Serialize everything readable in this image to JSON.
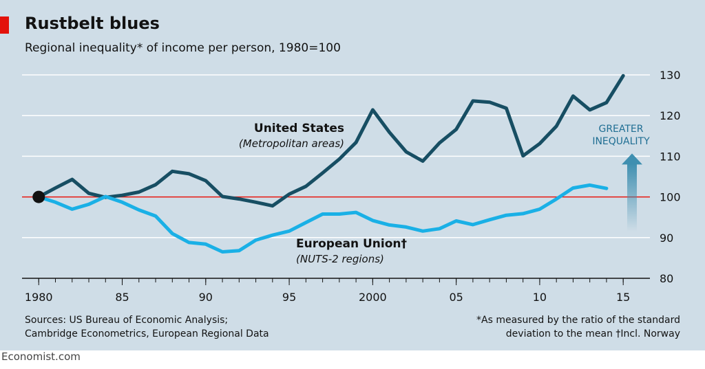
{
  "title": "Rustbelt blues",
  "subtitle": "Regional inequality* of income per person, 1980=100",
  "sources": [
    "Sources: US Bureau of Economic Analysis;",
    "Cambridge Econometrics, European Regional Data"
  ],
  "footnote": [
    "*As measured by the ratio of the standard",
    "deviation to the mean  †Incl. Norway"
  ],
  "brand": "Economist.com",
  "colors": {
    "background": "#cfdde7",
    "us": "#174e63",
    "eu": "#1ab0e6",
    "baseline": "#e3120b",
    "arrow": "#3f8fb0",
    "accent": "#e3120b"
  },
  "chart_data": {
    "type": "line",
    "title": "Rustbelt blues",
    "subtitle": "Regional inequality* of income per person, 1980=100",
    "x": [
      1980,
      1981,
      1982,
      1983,
      1984,
      1985,
      1986,
      1987,
      1988,
      1989,
      1990,
      1991,
      1992,
      1993,
      1994,
      1995,
      1996,
      1997,
      1998,
      1999,
      2000,
      2001,
      2002,
      2003,
      2004,
      2005,
      2006,
      2007,
      2008,
      2009,
      2010,
      2011,
      2012,
      2013,
      2014,
      2015
    ],
    "xticks": [
      1980,
      1985,
      1990,
      1995,
      2000,
      2005,
      2010,
      2015
    ],
    "xtick_labels": [
      "1980",
      "85",
      "90",
      "95",
      "2000",
      "05",
      "10",
      "15"
    ],
    "xlim": [
      1979,
      2016.6
    ],
    "ylim": [
      80,
      130
    ],
    "yticks": [
      80,
      90,
      100,
      110,
      120,
      130
    ],
    "ytick_labels": [
      "80",
      "90",
      "100",
      "110",
      "120",
      "130"
    ],
    "grid": true,
    "reference_line": 100,
    "series": [
      {
        "name": "United States",
        "sublabel": "(Metropolitan areas)",
        "values": [
          100,
          102.2,
          104.3,
          100.9,
          99.9,
          100.4,
          101.2,
          103.0,
          106.3,
          105.7,
          104.0,
          100.1,
          99.5,
          98.7,
          97.8,
          100.7,
          102.6,
          105.9,
          109.3,
          113.4,
          121.4,
          115.9,
          111.1,
          108.8,
          113.3,
          116.6,
          123.6,
          123.3,
          121.8,
          110.1,
          113.1,
          117.4,
          124.8,
          121.4,
          123.2,
          129.8
        ]
      },
      {
        "name": "European Union†",
        "sublabel": "(NUTS-2 regions)",
        "values": [
          100,
          98.7,
          97.0,
          98.2,
          100.1,
          98.7,
          96.8,
          95.3,
          91.0,
          88.8,
          88.4,
          86.5,
          86.8,
          89.4,
          90.6,
          91.6,
          93.7,
          95.8,
          95.8,
          96.2,
          94.2,
          93.1,
          92.6,
          91.6,
          92.2,
          94.1,
          93.2,
          94.4,
          95.5,
          95.9,
          97.0,
          99.5,
          102.2,
          102.9,
          102.1,
          null
        ]
      }
    ],
    "annotations": {
      "arrow_label": [
        "GREATER",
        "INEQUALITY"
      ]
    }
  }
}
